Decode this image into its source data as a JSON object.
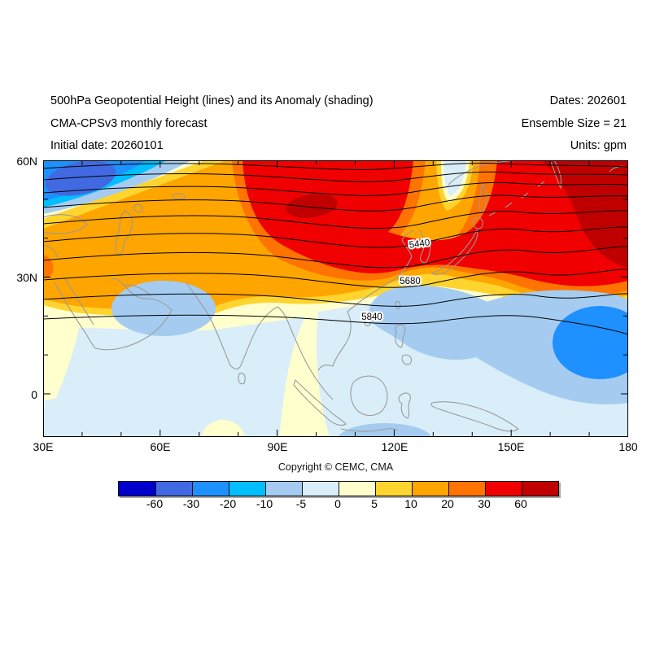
{
  "header": {
    "title": "500hPa Geopotential Height (lines) and its Anomaly (shading)",
    "model": "CMA-CPSv3 monthly forecast",
    "initial_date": "Initial date: 20260101",
    "dates": "Dates: 202601",
    "ensemble_size": "Ensemble Size = 21",
    "units": "Units: gpm"
  },
  "map": {
    "y_axis_labels": [
      "60N",
      "30N",
      "0"
    ],
    "x_axis_labels": [
      "30E",
      "60E",
      "90E",
      "120E",
      "150E",
      "180"
    ],
    "contour_labels": [
      "5440",
      "5680",
      "5840"
    ],
    "coastline_color": "#9a9a9a",
    "contour_color": "#000000",
    "frame_color": "#000000"
  },
  "footer": {
    "copyright": "Copyright © CEMC, CMA"
  },
  "colorbar": {
    "tick_labels": [
      "-60",
      "-30",
      "-20",
      "-10",
      "-5",
      "0",
      "5",
      "10",
      "20",
      "30",
      "60"
    ],
    "colors": [
      "#0000cc",
      "#4169e1",
      "#1e90ff",
      "#00bfff",
      "#a5ccf0",
      "#d9eef8",
      "#ffffce",
      "#ffd42e",
      "#ffa500",
      "#ff7300",
      "#f00000",
      "#c00000"
    ]
  },
  "chart_data": {
    "type": "filled-contour-map",
    "title": "500hPa Geopotential Height (lines) and its Anomaly (shading)",
    "model": "CMA-CPSv3 monthly forecast",
    "initial_date": "20260101",
    "forecast_month": "202601",
    "ensemble_size": 21,
    "units": "gpm",
    "lon_range": [
      "30E",
      "180"
    ],
    "lat_range": [
      "10S",
      "60N"
    ],
    "x_ticks": [
      "30E",
      "60E",
      "90E",
      "120E",
      "150E",
      "180"
    ],
    "y_ticks": [
      "60N",
      "30N",
      "0"
    ],
    "contour_lines_gpm": [
      5440,
      5680,
      5840
    ],
    "anomaly_shading_levels_gpm": [
      -60,
      -30,
      -20,
      -10,
      -5,
      0,
      5,
      10,
      20,
      30,
      60
    ],
    "anomaly_features": [
      {
        "sign": "negative",
        "center": "~45E, 55N",
        "peak_band": "-20 to -30"
      },
      {
        "sign": "positive",
        "center": "~95E, 45N",
        "peak_band": "> 60"
      },
      {
        "sign": "positive",
        "center": "~165E, 50N",
        "peak_band": "> 60"
      },
      {
        "sign": "negative",
        "center": "~58E, 22N",
        "peak_band": "-5 to -10"
      },
      {
        "sign": "negative",
        "center": "~128E, 20N",
        "peak_band": "-5 to -10"
      },
      {
        "sign": "negative",
        "center": "~172E, 15N",
        "peak_band": "-10 to -20"
      },
      {
        "sign": "weak-positive",
        "center": "tropics 75E-95E",
        "peak_band": "0 to 5"
      }
    ]
  }
}
